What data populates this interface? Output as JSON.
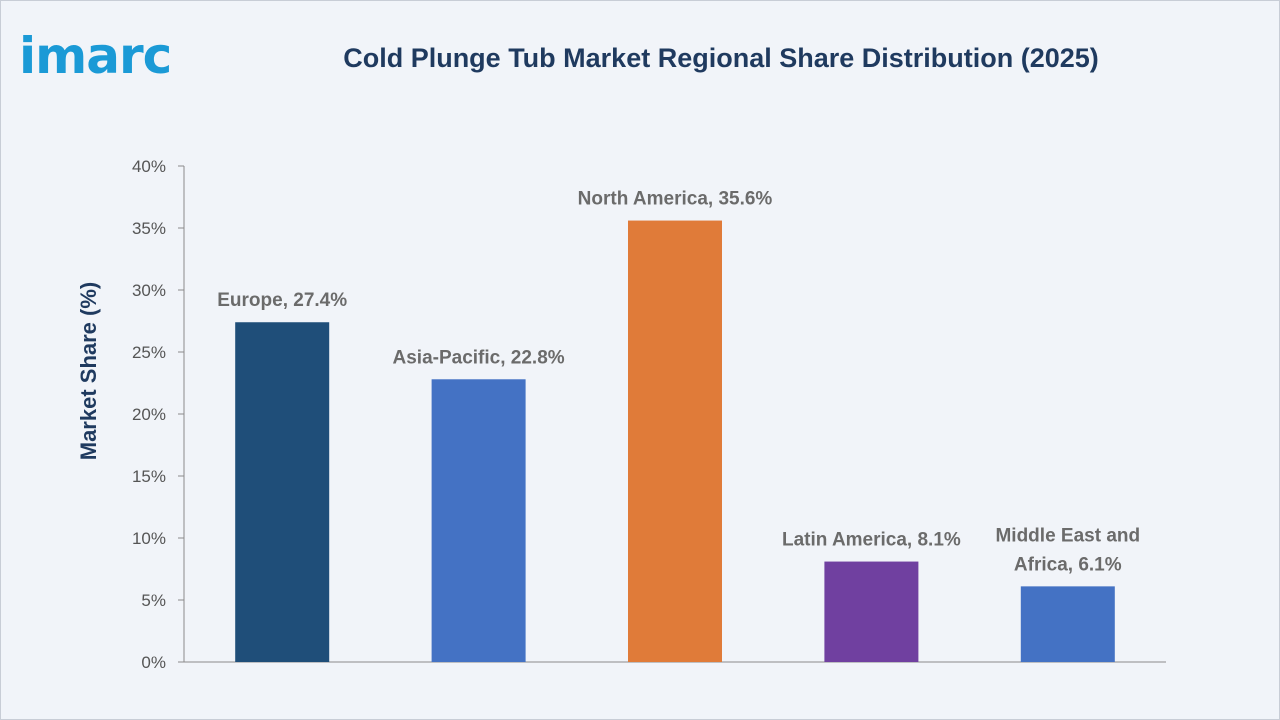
{
  "brand": {
    "logo_text": "imarc"
  },
  "chart_data": {
    "type": "bar",
    "title": "Cold Plunge Tub Market Regional Share Distribution (2025)",
    "xlabel": "",
    "ylabel": "Market Share (%)",
    "ylim": [
      0,
      40
    ],
    "yticks": [
      "0%",
      "5%",
      "10%",
      "15%",
      "20%",
      "25%",
      "30%",
      "35%",
      "40%"
    ],
    "categories": [
      "Europe",
      "Asia-Pacific",
      "North America",
      "Latin America",
      "Middle East and Africa"
    ],
    "values": [
      27.4,
      22.8,
      35.6,
      8.1,
      6.1
    ],
    "data_labels": [
      [
        "Europe, 27.4%"
      ],
      [
        "Asia-Pacific, 22.8%"
      ],
      [
        "North America, 35.6%"
      ],
      [
        "Latin America, 8.1%"
      ],
      [
        "Middle East and",
        "Africa, 6.1%"
      ]
    ],
    "colors": [
      "#1f4e79",
      "#4472c4",
      "#e07b39",
      "#7040a0",
      "#4472c4"
    ],
    "grid": false,
    "legend": "none"
  }
}
